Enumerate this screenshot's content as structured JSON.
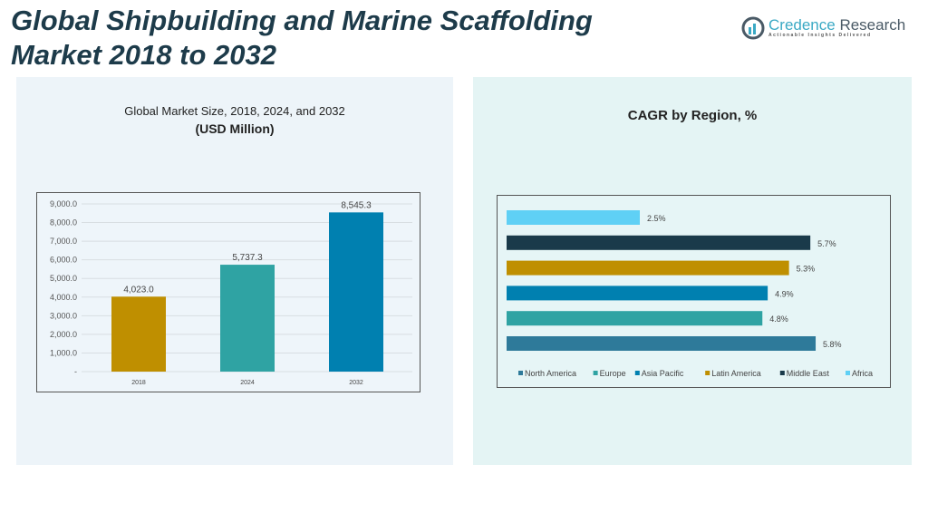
{
  "title": "Global Shipbuilding and Marine Scaffolding Market 2018 to 2032",
  "title_line1": "Global Shipbuilding and Marine Scaffolding",
  "title_line2": "Market 2018 to 2032",
  "logo": {
    "name": "Credence",
    "name2": " Research",
    "tagline": "Actionable Insights Delivered"
  },
  "chart_data": [
    {
      "type": "bar",
      "title": "Global Market Size, 2018, 2024, and 2032",
      "subtitle": "(USD Million)",
      "categories": [
        "2018",
        "2024",
        "2032"
      ],
      "values": [
        4023.0,
        5737.3,
        8545.3
      ],
      "value_labels": [
        "4,023.0",
        "5,737.3",
        "8,545.3"
      ],
      "colors": [
        "#bf8f00",
        "#2fa3a3",
        "#0080b0"
      ],
      "ylim": [
        0,
        9000
      ],
      "yticks": [
        "-",
        "1,000.0",
        "2,000.0",
        "3,000.0",
        "4,000.0",
        "5,000.0",
        "6,000.0",
        "7,000.0",
        "8,000.0",
        "9,000.0"
      ],
      "grid": true
    },
    {
      "type": "bar",
      "orientation": "horizontal",
      "title": "CAGR by Region, %",
      "series": [
        {
          "name": "North America",
          "value": 5.8,
          "label": "5.8%",
          "color": "#2e7a9a"
        },
        {
          "name": "Europe",
          "value": 4.8,
          "label": "4.8%",
          "color": "#2fa3a3"
        },
        {
          "name": "Asia Pacific",
          "value": 4.9,
          "label": "4.9%",
          "color": "#0080b0"
        },
        {
          "name": "Latin America",
          "value": 5.3,
          "label": "5.3%",
          "color": "#bf8f00"
        },
        {
          "name": "Middle East",
          "value": 5.7,
          "label": "5.7%",
          "color": "#1a3a4a"
        },
        {
          "name": "Africa",
          "value": 2.5,
          "label": "2.5%",
          "color": "#5fd0f5"
        }
      ],
      "legend": "bottom"
    }
  ]
}
